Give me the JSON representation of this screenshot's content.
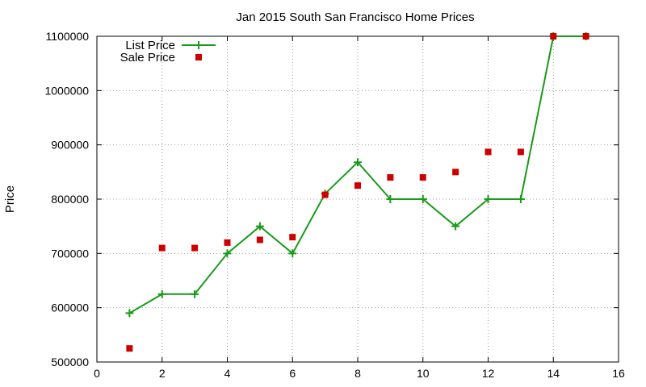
{
  "chart_data": {
    "type": "line",
    "title": "Jan 2015 South San Francisco Home Prices",
    "xlabel": "",
    "ylabel": "Price",
    "xlim": [
      0,
      16
    ],
    "ylim": [
      500000,
      1100000
    ],
    "xticks": [
      "0",
      "2",
      "4",
      "6",
      "8",
      "10",
      "12",
      "14",
      "16"
    ],
    "yticks": [
      "500000",
      "600000",
      "700000",
      "800000",
      "900000",
      "1000000",
      "1100000"
    ],
    "grid": true,
    "legend_position": "top-left",
    "series": [
      {
        "name": "List Price",
        "style": "line-with-plus-markers",
        "color": "#1a9a1a",
        "x": [
          1,
          2,
          3,
          4,
          5,
          6,
          7,
          8,
          9,
          10,
          11,
          12,
          13,
          14,
          15
        ],
        "y": [
          590000,
          625000,
          625000,
          700000,
          750000,
          700000,
          810000,
          868000,
          800000,
          800000,
          750000,
          800000,
          800000,
          1100000,
          1100000
        ]
      },
      {
        "name": "Sale Price",
        "style": "square-markers",
        "color": "#cc0000",
        "x": [
          1,
          2,
          3,
          4,
          5,
          6,
          7,
          8,
          9,
          10,
          11,
          12,
          13,
          14,
          15
        ],
        "y": [
          525000,
          710000,
          710000,
          720000,
          725000,
          730000,
          808000,
          825000,
          840000,
          840000,
          850000,
          887000,
          887000,
          1100000,
          1100000
        ]
      }
    ]
  }
}
